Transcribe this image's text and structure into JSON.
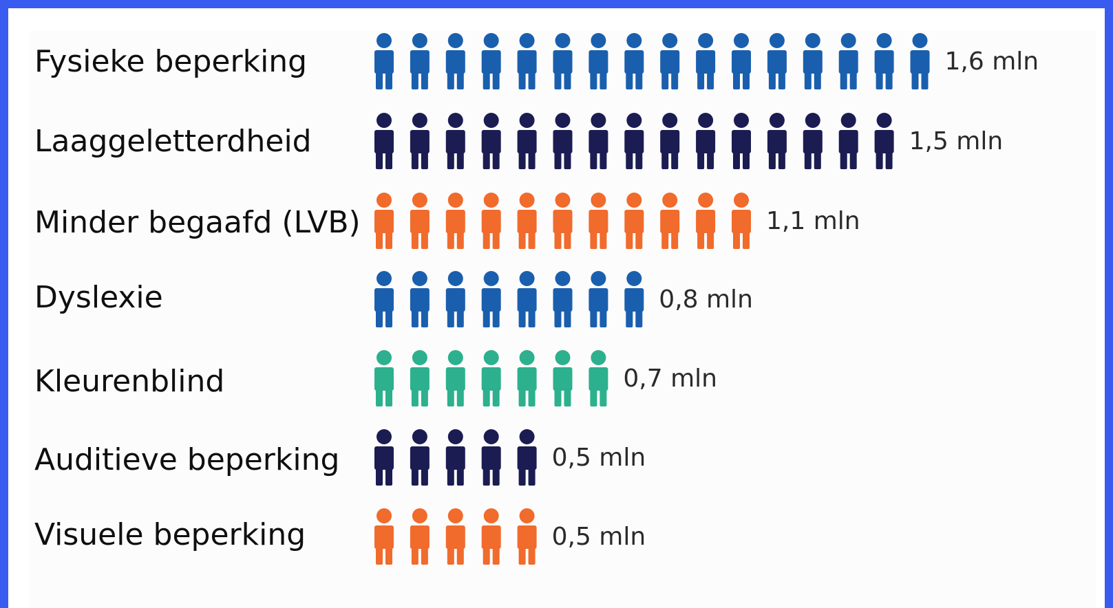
{
  "chart_data": {
    "type": "pictogram",
    "unit": "mln",
    "categories": [
      "Fysieke beperking",
      "Laaggeletterdheid",
      "Minder begaafd (LVB)",
      "Dyslexie",
      "Kleurenblind",
      "Auditieve beperking",
      "Visuele beperking"
    ],
    "values": [
      1.6,
      1.5,
      1.1,
      0.8,
      0.7,
      0.5,
      0.5
    ],
    "value_labels": [
      "1,6 mln",
      "1,5 mln",
      "1,1 mln",
      "0,8 mln",
      "0,7 mln",
      "0,5 mln",
      "0,5 mln"
    ],
    "icon": "person-icon",
    "icon_value": 0.1,
    "colors": [
      "#1a5fae",
      "#1b1c52",
      "#f06b2c",
      "#1a5fae",
      "#2db08e",
      "#1b1c52",
      "#f06b2c"
    ]
  },
  "colors": {
    "border": "#3a5bf0",
    "background": "#ffffff"
  }
}
